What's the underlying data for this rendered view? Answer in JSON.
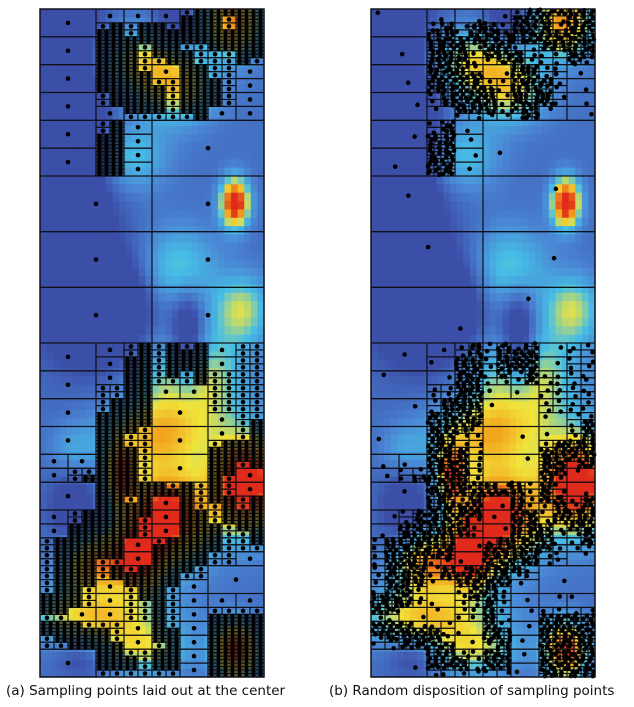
{
  "figure": {
    "colors": {
      "background": "#ffffff",
      "grid_line": "#0f0f14",
      "sample_point": "#000000",
      "colormap": [
        "#3b4ea8",
        "#4a86d4",
        "#46bfe6",
        "#f1e43a",
        "#f29f1c",
        "#e02a1b"
      ]
    },
    "panels": [
      {
        "id": "a",
        "caption": "(a) Sampling points laid out at the center",
        "layout": "center"
      },
      {
        "id": "b",
        "caption": "(b) Random disposition of sampling points",
        "layout": "random"
      }
    ]
  }
}
